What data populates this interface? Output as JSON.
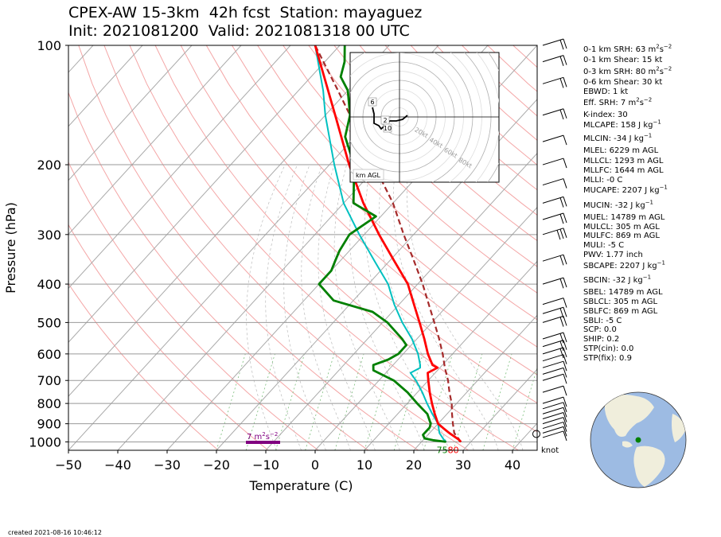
{
  "title_line1": "CPEX-AW 15-3km  42h fcst  Station: mayaguez",
  "title_line2": "Init: 2021081200  Valid: 2021081318 00 UTC",
  "created": "created 2021-08-16 10:46:12",
  "indices": [
    {
      "text": "0-1 km SRH: 63 m",
      "sup": "2",
      "text2": "s",
      "sup2": "−2"
    },
    {
      "text": "0-1 km Shear: 15 kt"
    },
    {
      "text": "0-3 km SRH: 80 m",
      "sup": "2",
      "text2": "s",
      "sup2": "−2"
    },
    {
      "text": "0-6 km Shear: 30 kt"
    },
    {
      "text": "EBWD: 1 kt"
    },
    {
      "text": "Eff. SRH: 7 m",
      "sup": "2",
      "text2": "s",
      "sup2": "−2"
    },
    {
      "text": "K-index: 30"
    },
    {
      "text": "MLCAPE: 158 J kg",
      "sup": "−1"
    },
    {
      "text": "MLCIN: -34 J kg",
      "sup": "−1"
    },
    {
      "text": "MLEL: 6229 m AGL"
    },
    {
      "text": "MLLCL: 1293 m AGL"
    },
    {
      "text": "MLLFC: 1644 m AGL"
    },
    {
      "text": "MLLI: -0 C"
    },
    {
      "text": "MUCAPE: 2207 J kg",
      "sup": "−1"
    },
    {
      "text": "MUCIN: -32 J kg",
      "sup": "−1"
    },
    {
      "text": "MUEL: 14789 m AGL"
    },
    {
      "text": "MULCL: 305 m AGL"
    },
    {
      "text": "MULFC: 869 m AGL"
    },
    {
      "text": "MULI: -5 C"
    },
    {
      "text": "PWV: 1.77 inch"
    },
    {
      "text": "SBCAPE: 2207 J kg",
      "sup": "−1"
    },
    {
      "text": "SBCIN: -32 J kg",
      "sup": "−1"
    },
    {
      "text": "SBEL: 14789 m AGL"
    },
    {
      "text": "SBLCL: 305 m AGL"
    },
    {
      "text": "SBLFC: 869 m AGL"
    },
    {
      "text": "SBLI: -5 C"
    },
    {
      "text": "SCP: 0.0"
    },
    {
      "text": "SHIP: 0.2"
    },
    {
      "text": "STP(cin): 0.0"
    },
    {
      "text": "STP(fix): 0.9"
    }
  ],
  "chart_data": {
    "type": "skew-t",
    "xlabel": "Temperature (C)",
    "ylabel": "Pressure (hPa)",
    "xlim": [
      -50,
      45
    ],
    "ylim": [
      1050,
      100
    ],
    "xticks": [
      -50,
      -40,
      -30,
      -20,
      -10,
      0,
      10,
      20,
      30,
      40
    ],
    "yticks": [
      100,
      200,
      300,
      400,
      500,
      600,
      700,
      800,
      900,
      1000
    ],
    "grid": true,
    "series": [
      {
        "role": "temperature",
        "color": "#ff0000",
        "points": [
          [
            1000,
            28
          ],
          [
            985,
            27
          ],
          [
            950,
            24
          ],
          [
            925,
            22
          ],
          [
            900,
            20
          ],
          [
            850,
            17.5
          ],
          [
            800,
            15
          ],
          [
            750,
            12.5
          ],
          [
            700,
            10
          ],
          [
            670,
            8.5
          ],
          [
            650,
            9.5
          ],
          [
            640,
            8
          ],
          [
            600,
            5
          ],
          [
            550,
            1.5
          ],
          [
            500,
            -2.5
          ],
          [
            450,
            -7
          ],
          [
            400,
            -12
          ],
          [
            350,
            -19
          ],
          [
            300,
            -27
          ],
          [
            250,
            -36
          ],
          [
            200,
            -46
          ],
          [
            150,
            -58
          ],
          [
            130,
            -64
          ],
          [
            100,
            -75
          ]
        ]
      },
      {
        "role": "dewpoint",
        "color": "#008000",
        "points": [
          [
            1000,
            25
          ],
          [
            990,
            22
          ],
          [
            980,
            20
          ],
          [
            960,
            19
          ],
          [
            940,
            19
          ],
          [
            920,
            19
          ],
          [
            900,
            18.5
          ],
          [
            850,
            16
          ],
          [
            800,
            12
          ],
          [
            750,
            8
          ],
          [
            700,
            3
          ],
          [
            660,
            -3
          ],
          [
            640,
            -4
          ],
          [
            620,
            -2
          ],
          [
            600,
            -1
          ],
          [
            570,
            -1
          ],
          [
            550,
            -3
          ],
          [
            500,
            -9
          ],
          [
            470,
            -14
          ],
          [
            440,
            -24
          ],
          [
            400,
            -30
          ],
          [
            370,
            -30
          ],
          [
            350,
            -31
          ],
          [
            330,
            -32
          ],
          [
            300,
            -33
          ],
          [
            270,
            -31
          ],
          [
            250,
            -38
          ],
          [
            220,
            -42
          ],
          [
            200,
            -45
          ],
          [
            170,
            -52
          ],
          [
            150,
            -55
          ],
          [
            130,
            -60
          ],
          [
            120,
            -64
          ],
          [
            110,
            -66
          ],
          [
            100,
            -69
          ]
        ]
      },
      {
        "role": "wet-bulb",
        "color": "#00c0c0",
        "points": [
          [
            1000,
            25
          ],
          [
            985,
            24
          ],
          [
            950,
            22
          ],
          [
            925,
            21
          ],
          [
            900,
            20
          ],
          [
            850,
            17
          ],
          [
            800,
            14
          ],
          [
            750,
            11
          ],
          [
            700,
            7.5
          ],
          [
            670,
            5
          ],
          [
            650,
            6
          ],
          [
            640,
            5.5
          ],
          [
            600,
            3
          ],
          [
            550,
            -1
          ],
          [
            500,
            -6
          ],
          [
            450,
            -11
          ],
          [
            400,
            -16
          ],
          [
            350,
            -23
          ],
          [
            300,
            -31
          ],
          [
            250,
            -40
          ],
          [
            200,
            -49
          ],
          [
            150,
            -60
          ],
          [
            130,
            -65
          ],
          [
            100,
            -75
          ]
        ]
      },
      {
        "role": "parcel",
        "color": "#a52a2a",
        "points": [
          [
            1000,
            28
          ],
          [
            950,
            25
          ],
          [
            900,
            23
          ],
          [
            850,
            21
          ],
          [
            800,
            19
          ],
          [
            750,
            16.5
          ],
          [
            700,
            14
          ],
          [
            650,
            11
          ],
          [
            600,
            8
          ],
          [
            550,
            4.5
          ],
          [
            500,
            0.5
          ],
          [
            450,
            -4
          ],
          [
            400,
            -9
          ],
          [
            350,
            -15
          ],
          [
            300,
            -22
          ],
          [
            250,
            -30
          ],
          [
            200,
            -41
          ],
          [
            150,
            -55
          ],
          [
            130,
            -62
          ],
          [
            100,
            -75
          ]
        ]
      }
    ],
    "surface_labels": {
      "dewpoint": "75",
      "temperature": "80"
    },
    "srh_label": {
      "value": "7",
      "unit": "m",
      "sup1": "2",
      "mid": "s",
      "sup2": "−2"
    },
    "wind_unit": "knot",
    "wind_barbs": [
      {
        "p": 1000,
        "kt": 0
      },
      {
        "p": 975,
        "kt": 10
      },
      {
        "p": 950,
        "kt": 12
      },
      {
        "p": 925,
        "kt": 12
      },
      {
        "p": 900,
        "kt": 12
      },
      {
        "p": 875,
        "kt": 12
      },
      {
        "p": 850,
        "kt": 12
      },
      {
        "p": 825,
        "kt": 10
      },
      {
        "p": 800,
        "kt": 10
      },
      {
        "p": 750,
        "kt": 10
      },
      {
        "p": 700,
        "kt": 10
      },
      {
        "p": 675,
        "kt": 10
      },
      {
        "p": 650,
        "kt": 10
      },
      {
        "p": 625,
        "kt": 10
      },
      {
        "p": 600,
        "kt": 15
      },
      {
        "p": 575,
        "kt": 20
      },
      {
        "p": 550,
        "kt": 20
      },
      {
        "p": 500,
        "kt": 15
      },
      {
        "p": 475,
        "kt": 15
      },
      {
        "p": 450,
        "kt": 10
      },
      {
        "p": 400,
        "kt": 15
      },
      {
        "p": 350,
        "kt": 20
      },
      {
        "p": 300,
        "kt": 25
      },
      {
        "p": 275,
        "kt": 15
      },
      {
        "p": 250,
        "kt": 15
      },
      {
        "p": 225,
        "kt": 10
      },
      {
        "p": 200,
        "kt": 10
      },
      {
        "p": 175,
        "kt": 10
      },
      {
        "p": 150,
        "kt": 15
      },
      {
        "p": 125,
        "kt": 20
      },
      {
        "p": 110,
        "kt": 20
      },
      {
        "p": 100,
        "kt": 15
      }
    ],
    "hodograph": {
      "label": "km AGL",
      "rings": [
        "20kt",
        "40kt",
        "60kt",
        "80kt"
      ],
      "height_labels": [
        "6",
        "2",
        "10"
      ]
    }
  }
}
